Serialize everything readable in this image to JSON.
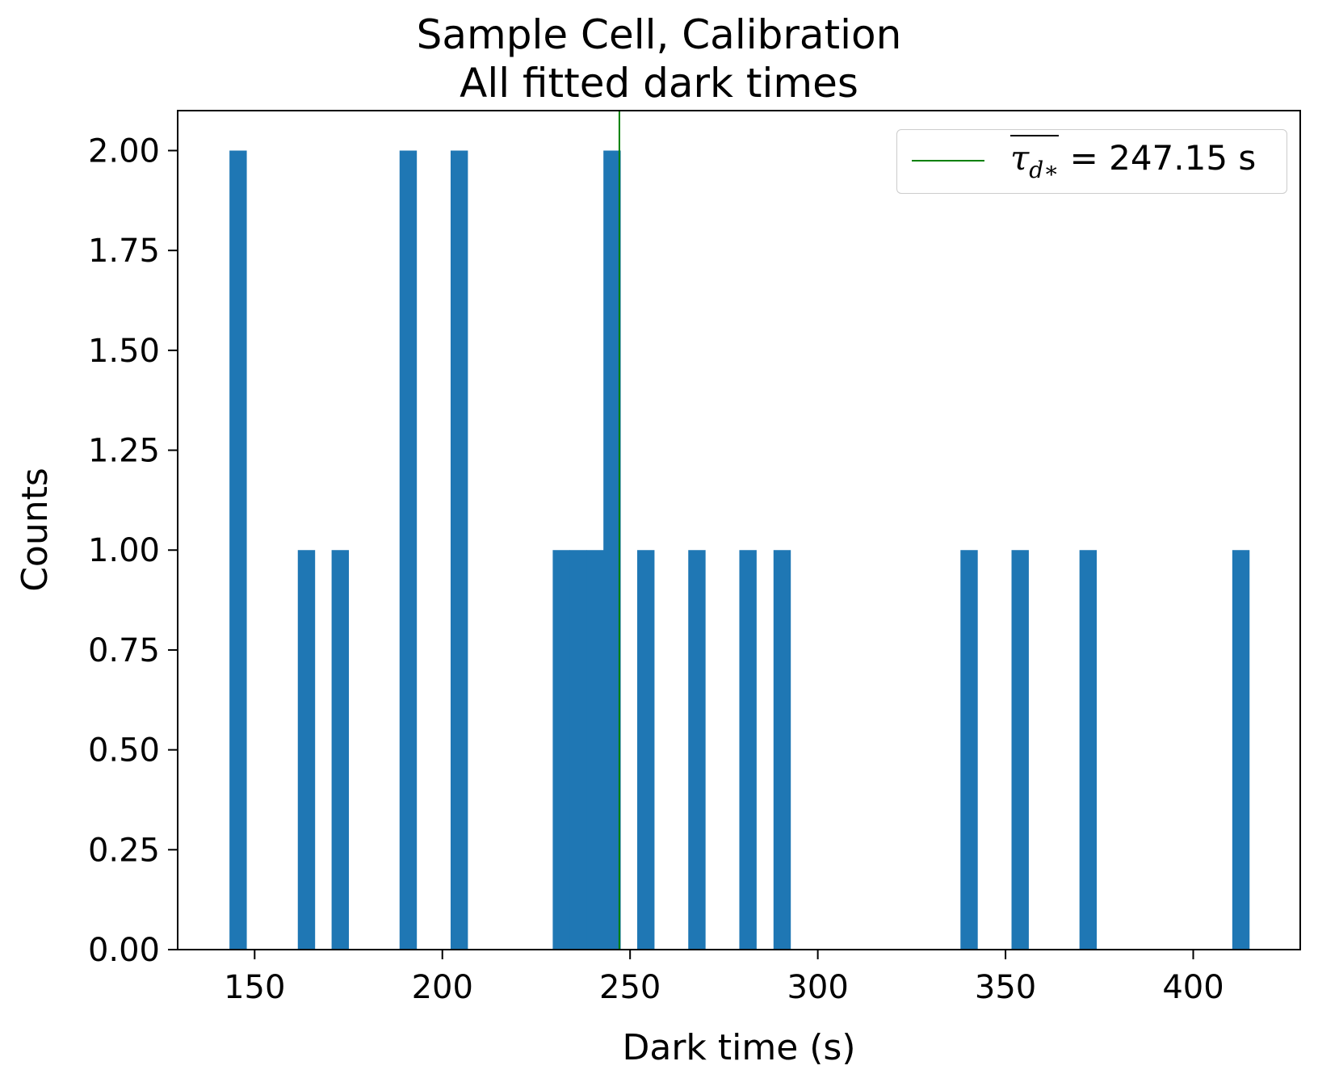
{
  "chart_data": {
    "type": "bar",
    "title": "Sample Cell, Calibration",
    "subtitle": "All fitted dark times",
    "xlabel": "Dark time (s)",
    "ylabel": "Counts",
    "xlim": [
      129.5,
      428.5
    ],
    "ylim": [
      0.0,
      2.1
    ],
    "xticks": [
      150,
      200,
      250,
      300,
      350,
      400
    ],
    "yticks": [
      0.0,
      0.25,
      0.5,
      0.75,
      1.0,
      1.25,
      1.5,
      1.75,
      2.0
    ],
    "ytick_labels": [
      "0.00",
      "0.25",
      "0.50",
      "0.75",
      "1.00",
      "1.25",
      "1.50",
      "1.75",
      "2.00"
    ],
    "bar_color": "#1f77b4",
    "bin_width": 4.5,
    "bins": [
      {
        "x": 143.3,
        "count": 2
      },
      {
        "x": 161.5,
        "count": 1
      },
      {
        "x": 170.5,
        "count": 1
      },
      {
        "x": 188.6,
        "count": 2
      },
      {
        "x": 202.2,
        "count": 2
      },
      {
        "x": 229.4,
        "count": 1
      },
      {
        "x": 233.9,
        "count": 1
      },
      {
        "x": 238.4,
        "count": 1
      },
      {
        "x": 242.9,
        "count": 2
      },
      {
        "x": 251.9,
        "count": 1
      },
      {
        "x": 265.5,
        "count": 1
      },
      {
        "x": 279.1,
        "count": 1
      },
      {
        "x": 288.2,
        "count": 1
      },
      {
        "x": 338.0,
        "count": 1
      },
      {
        "x": 351.6,
        "count": 1
      },
      {
        "x": 369.7,
        "count": 1
      },
      {
        "x": 410.4,
        "count": 1
      }
    ],
    "mean_line": {
      "x": 247.15,
      "color": "#008000"
    },
    "legend": {
      "position": "top-right",
      "symbol": "τ",
      "subscript": "d∗",
      "text": " = 247.15 s"
    }
  }
}
